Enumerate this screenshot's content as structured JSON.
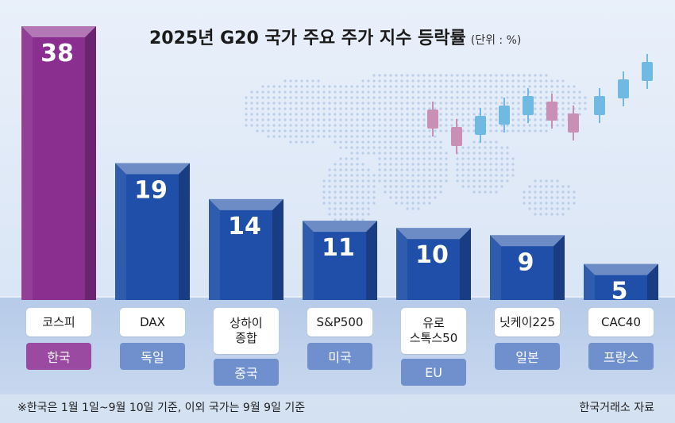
{
  "title": "2025년 G20 국가 주요 주가 지수 등락률",
  "unit_label": "(단위 : %)",
  "footnote": "※한국은 1월 1일~9월 10일 기준, 이외 국가는 9월 9일 기준",
  "source": "한국거래소 자료",
  "colors": {
    "highlight": "#8a2f8f",
    "highlight_country": "#9a4aa1",
    "bar": "#1f4fa8",
    "country": "#6f8fcd",
    "candle_pink": "#c98fb4",
    "candle_blue": "#6fb9e3"
  },
  "chart_data": {
    "type": "bar",
    "title": "2025년 G20 국가 주요 주가 지수 등락률",
    "unit": "%",
    "categories": [
      "코스피",
      "DAX",
      "상하이\n종합",
      "S&P500",
      "유로\n스톡스50",
      "닛케이225",
      "CAC40"
    ],
    "countries": [
      "한국",
      "독일",
      "중국",
      "미국",
      "EU",
      "일본",
      "프랑스"
    ],
    "values": [
      38,
      19,
      14,
      11,
      10,
      9,
      5
    ],
    "value_labels": [
      "38",
      "19",
      "14",
      "11",
      "10",
      "9",
      "5"
    ],
    "highlight_index": 0,
    "country_box_row": [
      0,
      0,
      1,
      0,
      1,
      0,
      0
    ],
    "ylim": [
      0,
      38
    ],
    "xlabel": "",
    "ylabel": ""
  }
}
